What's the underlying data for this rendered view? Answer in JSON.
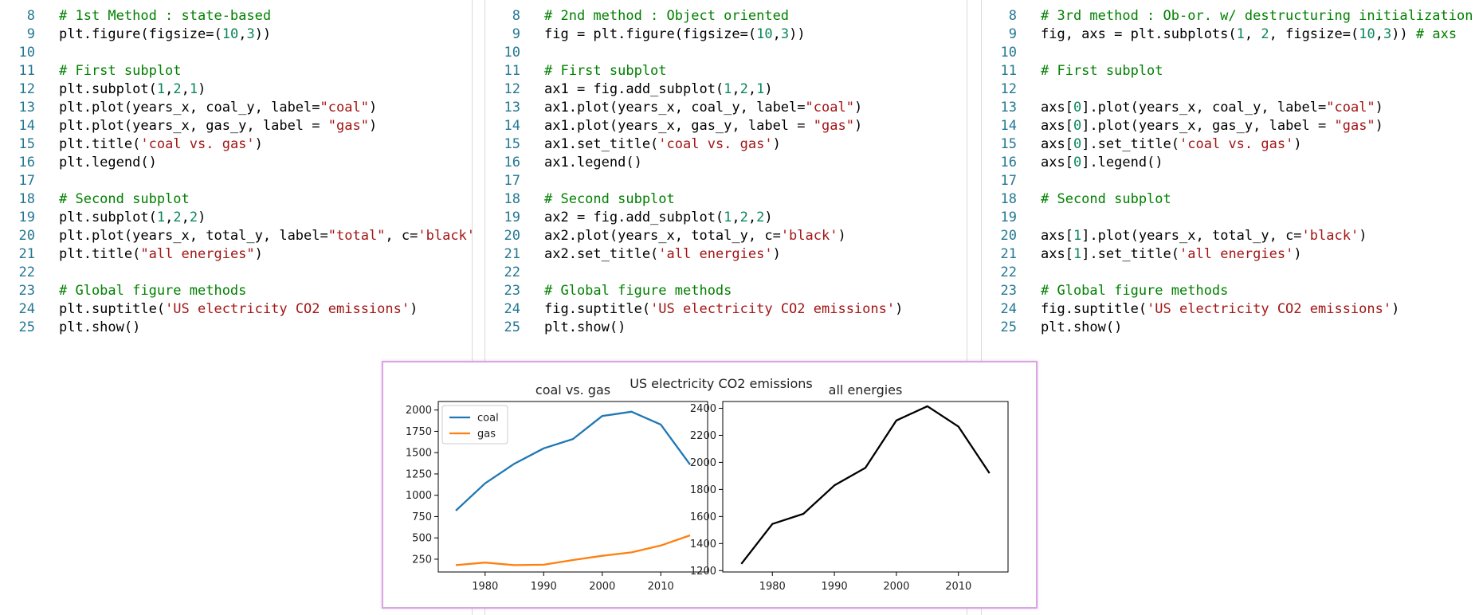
{
  "editor": {
    "start_line": 8,
    "panes": [
      {
        "name": "pane-state-based",
        "lines": [
          [
            [
              "cmt",
              "# 1st Method : state-based"
            ]
          ],
          [
            [
              "txt",
              "plt.figure(figsize=("
            ],
            [
              "num",
              "10"
            ],
            [
              "txt",
              ","
            ],
            [
              "num",
              "3"
            ],
            [
              "txt",
              "))"
            ]
          ],
          [],
          [
            [
              "cmt",
              "# First subplot"
            ]
          ],
          [
            [
              "txt",
              "plt.subplot("
            ],
            [
              "num",
              "1"
            ],
            [
              "txt",
              ","
            ],
            [
              "num",
              "2"
            ],
            [
              "txt",
              ","
            ],
            [
              "num",
              "1"
            ],
            [
              "txt",
              ")"
            ]
          ],
          [
            [
              "txt",
              "plt.plot(years_x, coal_y, label="
            ],
            [
              "str",
              "\"coal\""
            ],
            [
              "txt",
              ")"
            ]
          ],
          [
            [
              "txt",
              "plt.plot(years_x, gas_y, label = "
            ],
            [
              "str",
              "\"gas\""
            ],
            [
              "txt",
              ")"
            ]
          ],
          [
            [
              "txt",
              "plt.title("
            ],
            [
              "str",
              "'coal vs. gas'"
            ],
            [
              "txt",
              ")"
            ]
          ],
          [
            [
              "txt",
              "plt.legend()"
            ]
          ],
          [],
          [
            [
              "cmt",
              "# Second subplot"
            ]
          ],
          [
            [
              "txt",
              "plt.subplot("
            ],
            [
              "num",
              "1"
            ],
            [
              "txt",
              ","
            ],
            [
              "num",
              "2"
            ],
            [
              "txt",
              ","
            ],
            [
              "num",
              "2"
            ],
            [
              "txt",
              ") "
            ]
          ],
          [
            [
              "txt",
              "plt.plot(years_x, total_y, label="
            ],
            [
              "str",
              "\"total\""
            ],
            [
              "txt",
              ", c="
            ],
            [
              "str",
              "'black'"
            ],
            [
              "txt",
              ")"
            ]
          ],
          [
            [
              "txt",
              "plt.title("
            ],
            [
              "str",
              "\"all energies\""
            ],
            [
              "txt",
              ")"
            ]
          ],
          [],
          [
            [
              "cmt",
              "# Global figure methods"
            ]
          ],
          [
            [
              "txt",
              "plt.suptitle("
            ],
            [
              "str",
              "'US electricity CO2 emissions'"
            ],
            [
              "txt",
              ")"
            ]
          ],
          [
            [
              "txt",
              "plt.show()"
            ]
          ]
        ]
      },
      {
        "name": "pane-object-oriented",
        "lines": [
          [
            [
              "cmt",
              "# 2nd method : Object oriented"
            ]
          ],
          [
            [
              "txt",
              "fig = plt.figure(figsize=("
            ],
            [
              "num",
              "10"
            ],
            [
              "txt",
              ","
            ],
            [
              "num",
              "3"
            ],
            [
              "txt",
              "))"
            ]
          ],
          [],
          [
            [
              "cmt",
              "# First subplot"
            ]
          ],
          [
            [
              "txt",
              "ax1 = fig.add_subplot("
            ],
            [
              "num",
              "1"
            ],
            [
              "txt",
              ","
            ],
            [
              "num",
              "2"
            ],
            [
              "txt",
              ","
            ],
            [
              "num",
              "1"
            ],
            [
              "txt",
              ")"
            ]
          ],
          [
            [
              "txt",
              "ax1.plot(years_x, coal_y, label="
            ],
            [
              "str",
              "\"coal\""
            ],
            [
              "txt",
              ")"
            ]
          ],
          [
            [
              "txt",
              "ax1.plot(years_x, gas_y, label = "
            ],
            [
              "str",
              "\"gas\""
            ],
            [
              "txt",
              ")"
            ]
          ],
          [
            [
              "txt",
              "ax1.set_title("
            ],
            [
              "str",
              "'coal vs. gas'"
            ],
            [
              "txt",
              ")"
            ]
          ],
          [
            [
              "txt",
              "ax1.legend()"
            ]
          ],
          [],
          [
            [
              "cmt",
              "# Second subplot"
            ]
          ],
          [
            [
              "txt",
              "ax2 = fig.add_subplot("
            ],
            [
              "num",
              "1"
            ],
            [
              "txt",
              ","
            ],
            [
              "num",
              "2"
            ],
            [
              "txt",
              ","
            ],
            [
              "num",
              "2"
            ],
            [
              "txt",
              ")"
            ]
          ],
          [
            [
              "txt",
              "ax2.plot(years_x, total_y, c="
            ],
            [
              "str",
              "'black'"
            ],
            [
              "txt",
              ")"
            ]
          ],
          [
            [
              "txt",
              "ax2.set_title("
            ],
            [
              "str",
              "'all energies'"
            ],
            [
              "txt",
              ")"
            ]
          ],
          [],
          [
            [
              "cmt",
              "# Global figure methods"
            ]
          ],
          [
            [
              "txt",
              "fig.suptitle("
            ],
            [
              "str",
              "'US electricity CO2 emissions'"
            ],
            [
              "txt",
              ")"
            ]
          ],
          [
            [
              "txt",
              "plt.show()"
            ]
          ]
        ]
      },
      {
        "name": "pane-destructuring",
        "lines": [
          [
            [
              "cmt",
              "# 3rd method : Ob-or. w/ destructuring initialization"
            ]
          ],
          [
            [
              "txt",
              "fig, axs = plt.subplots("
            ],
            [
              "num",
              "1"
            ],
            [
              "txt",
              ", "
            ],
            [
              "num",
              "2"
            ],
            [
              "txt",
              ", figsize=("
            ],
            [
              "num",
              "10"
            ],
            [
              "txt",
              ","
            ],
            [
              "num",
              "3"
            ],
            [
              "txt",
              "))"
            ],
            [
              "cmt",
              " # axs"
            ]
          ],
          [],
          [
            [
              "cmt",
              "# First subplot"
            ]
          ],
          [],
          [
            [
              "txt",
              "axs["
            ],
            [
              "num",
              "0"
            ],
            [
              "txt",
              "].plot(years_x, coal_y, label="
            ],
            [
              "str",
              "\"coal\""
            ],
            [
              "txt",
              ")"
            ]
          ],
          [
            [
              "txt",
              "axs["
            ],
            [
              "num",
              "0"
            ],
            [
              "txt",
              "].plot(years_x, gas_y, label = "
            ],
            [
              "str",
              "\"gas\""
            ],
            [
              "txt",
              ")"
            ]
          ],
          [
            [
              "txt",
              "axs["
            ],
            [
              "num",
              "0"
            ],
            [
              "txt",
              "].set_title("
            ],
            [
              "str",
              "'coal vs. gas'"
            ],
            [
              "txt",
              ")"
            ]
          ],
          [
            [
              "txt",
              "axs["
            ],
            [
              "num",
              "0"
            ],
            [
              "txt",
              "].legend()"
            ]
          ],
          [],
          [
            [
              "cmt",
              "# Second subplot"
            ]
          ],
          [],
          [
            [
              "txt",
              "axs["
            ],
            [
              "num",
              "1"
            ],
            [
              "txt",
              "].plot(years_x, total_y, c="
            ],
            [
              "str",
              "'black'"
            ],
            [
              "txt",
              ")"
            ]
          ],
          [
            [
              "txt",
              "axs["
            ],
            [
              "num",
              "1"
            ],
            [
              "txt",
              "].set_title("
            ],
            [
              "str",
              "'all energies'"
            ],
            [
              "txt",
              ")"
            ]
          ],
          [],
          [
            [
              "cmt",
              "# Global figure methods"
            ]
          ],
          [
            [
              "txt",
              "fig.suptitle("
            ],
            [
              "str",
              "'US electricity CO2 emissions'"
            ],
            [
              "txt",
              ")"
            ]
          ],
          [
            [
              "txt",
              "plt.show()"
            ]
          ]
        ]
      }
    ]
  },
  "colors": {
    "comment": "#008000",
    "string": "#a31515",
    "number": "#098658",
    "line_number": "#237893",
    "coal": "#1f77b4",
    "gas": "#ff7f0e",
    "total": "#000000",
    "figure_border": "#d9a6e3"
  },
  "figure": {
    "suptitle": "US electricity CO2 emissions"
  },
  "chart_data": [
    {
      "type": "line",
      "title": "coal vs. gas",
      "xlabel": "",
      "ylabel": "",
      "x": [
        1975,
        1980,
        1985,
        1990,
        1995,
        2000,
        2005,
        2010,
        2015
      ],
      "series": [
        {
          "name": "coal",
          "color": "#1f77b4",
          "values": [
            820,
            1140,
            1370,
            1550,
            1660,
            1930,
            1980,
            1830,
            1360
          ]
        },
        {
          "name": "gas",
          "color": "#ff7f0e",
          "values": [
            180,
            210,
            180,
            185,
            240,
            290,
            330,
            410,
            530
          ]
        }
      ],
      "xlim": [
        1972,
        2018
      ],
      "ylim": [
        100,
        2100
      ],
      "xticks": [
        1980,
        1990,
        2000,
        2010
      ],
      "yticks": [
        250,
        500,
        750,
        1000,
        1250,
        1500,
        1750,
        2000
      ],
      "legend": "upper-left",
      "grid": false
    },
    {
      "type": "line",
      "title": "all energies",
      "xlabel": "",
      "ylabel": "",
      "x": [
        1975,
        1980,
        1985,
        1990,
        1995,
        2000,
        2005,
        2010,
        2015
      ],
      "series": [
        {
          "name": "total",
          "color": "#000000",
          "values": [
            1250,
            1545,
            1620,
            1830,
            1960,
            2310,
            2415,
            2265,
            1920
          ]
        }
      ],
      "xlim": [
        1972,
        2018
      ],
      "ylim": [
        1190,
        2450
      ],
      "xticks": [
        1980,
        1990,
        2000,
        2010
      ],
      "yticks": [
        1200,
        1400,
        1600,
        1800,
        2000,
        2200,
        2400
      ],
      "legend": "none",
      "grid": false
    }
  ]
}
